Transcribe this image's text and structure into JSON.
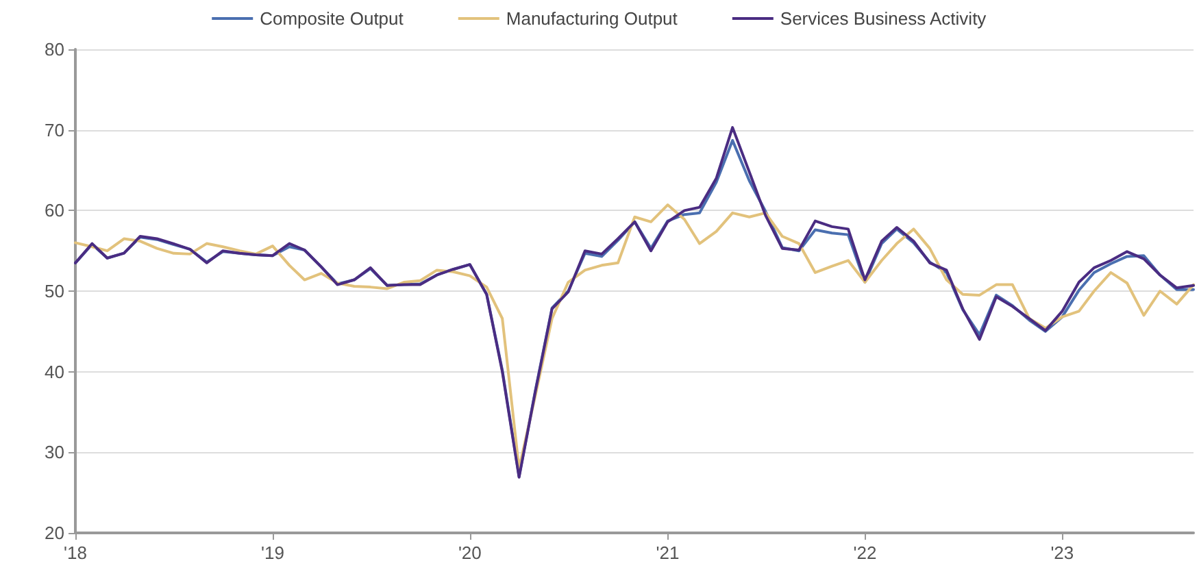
{
  "chart_data": {
    "type": "line",
    "x": [
      "2018-01",
      "2018-02",
      "2018-03",
      "2018-04",
      "2018-05",
      "2018-06",
      "2018-07",
      "2018-08",
      "2018-09",
      "2018-10",
      "2018-11",
      "2018-12",
      "2019-01",
      "2019-02",
      "2019-03",
      "2019-04",
      "2019-05",
      "2019-06",
      "2019-07",
      "2019-08",
      "2019-09",
      "2019-10",
      "2019-11",
      "2019-12",
      "2020-01",
      "2020-02",
      "2020-03",
      "2020-04",
      "2020-05",
      "2020-06",
      "2020-07",
      "2020-08",
      "2020-09",
      "2020-10",
      "2020-11",
      "2020-12",
      "2021-01",
      "2021-02",
      "2021-03",
      "2021-04",
      "2021-05",
      "2021-06",
      "2021-07",
      "2021-08",
      "2021-09",
      "2021-10",
      "2021-11",
      "2021-12",
      "2022-01",
      "2022-02",
      "2022-03",
      "2022-04",
      "2022-05",
      "2022-06",
      "2022-07",
      "2022-08",
      "2022-09",
      "2022-10",
      "2022-11",
      "2022-12",
      "2023-01",
      "2023-02",
      "2023-03",
      "2023-04",
      "2023-05",
      "2023-06",
      "2023-07",
      "2023-08",
      "2023-09"
    ],
    "series": [
      {
        "name": "Composite Output",
        "color": "#4a6fb0",
        "values": [
          53.5,
          55.8,
          54.1,
          54.7,
          56.7,
          56.4,
          55.8,
          55.2,
          53.6,
          54.9,
          54.7,
          54.5,
          54.4,
          55.5,
          55.1,
          53.0,
          50.9,
          51.4,
          52.8,
          50.7,
          50.8,
          50.9,
          52.0,
          52.7,
          53.3,
          49.6,
          40.2,
          27.0,
          37.6,
          47.9,
          50.0,
          54.7,
          54.3,
          56.3,
          58.6,
          55.3,
          58.7,
          59.5,
          59.7,
          63.5,
          68.7,
          63.7,
          59.9,
          55.4,
          55.0,
          57.6,
          57.2,
          57.0,
          51.1,
          55.9,
          57.7,
          56.0,
          53.6,
          52.3,
          47.7,
          44.6,
          49.5,
          48.2,
          46.4,
          45.0,
          46.8,
          50.1,
          52.3,
          53.4,
          54.3,
          54.4,
          52.0,
          50.2,
          50.2
        ]
      },
      {
        "name": "Manufacturing Output",
        "color": "#e2c27c",
        "values": [
          56.0,
          55.5,
          55.0,
          56.5,
          56.2,
          55.3,
          54.7,
          54.6,
          55.9,
          55.5,
          55.0,
          54.6,
          55.6,
          53.2,
          51.4,
          52.2,
          51.0,
          50.6,
          50.5,
          50.3,
          51.1,
          51.3,
          52.6,
          52.4,
          51.9,
          50.5,
          46.6,
          28.0,
          37.0,
          46.6,
          51.1,
          52.6,
          53.2,
          53.5,
          59.2,
          58.6,
          60.7,
          58.9,
          55.9,
          57.4,
          59.7,
          59.2,
          59.7,
          56.8,
          55.9,
          52.3,
          53.1,
          53.8,
          51.1,
          53.8,
          55.9,
          57.7,
          55.3,
          51.4,
          49.6,
          49.5,
          50.8,
          50.8,
          46.6,
          45.4,
          46.8,
          47.5,
          50.0,
          52.3,
          51.0,
          47.0,
          50.0,
          48.4,
          50.8
        ]
      },
      {
        "name": "Services Business Activity",
        "color": "#4a2c82",
        "values": [
          53.5,
          55.9,
          54.1,
          54.7,
          56.8,
          56.5,
          55.9,
          55.2,
          53.5,
          55.0,
          54.7,
          54.5,
          54.4,
          55.9,
          55.1,
          53.0,
          50.8,
          51.4,
          52.9,
          50.7,
          50.8,
          50.8,
          52.0,
          52.7,
          53.3,
          49.6,
          40.0,
          26.9,
          37.5,
          47.8,
          49.9,
          55.0,
          54.6,
          56.5,
          58.6,
          55.0,
          58.6,
          60.0,
          60.4,
          64.0,
          70.3,
          64.8,
          59.4,
          55.3,
          55.1,
          58.7,
          58.0,
          57.7,
          51.4,
          56.2,
          57.9,
          56.2,
          53.5,
          52.6,
          47.8,
          44.0,
          49.3,
          48.1,
          46.6,
          45.1,
          47.5,
          51.1,
          52.9,
          53.8,
          54.9,
          54.0,
          52.0,
          50.4,
          50.7
        ]
      }
    ],
    "xlim": [
      "2018-01",
      "2023-09"
    ],
    "xticks": [
      {
        "value": "2018-01",
        "label": "'18"
      },
      {
        "value": "2019-01",
        "label": "'19"
      },
      {
        "value": "2020-01",
        "label": "'20"
      },
      {
        "value": "2021-01",
        "label": "'21"
      },
      {
        "value": "2022-01",
        "label": "'22"
      },
      {
        "value": "2023-01",
        "label": "'23"
      }
    ],
    "ylim": [
      20,
      80
    ],
    "yticks": [
      20,
      30,
      40,
      50,
      60,
      70,
      80
    ],
    "grid": "y",
    "legend": "top",
    "marker": "none",
    "line_style": "solid"
  }
}
